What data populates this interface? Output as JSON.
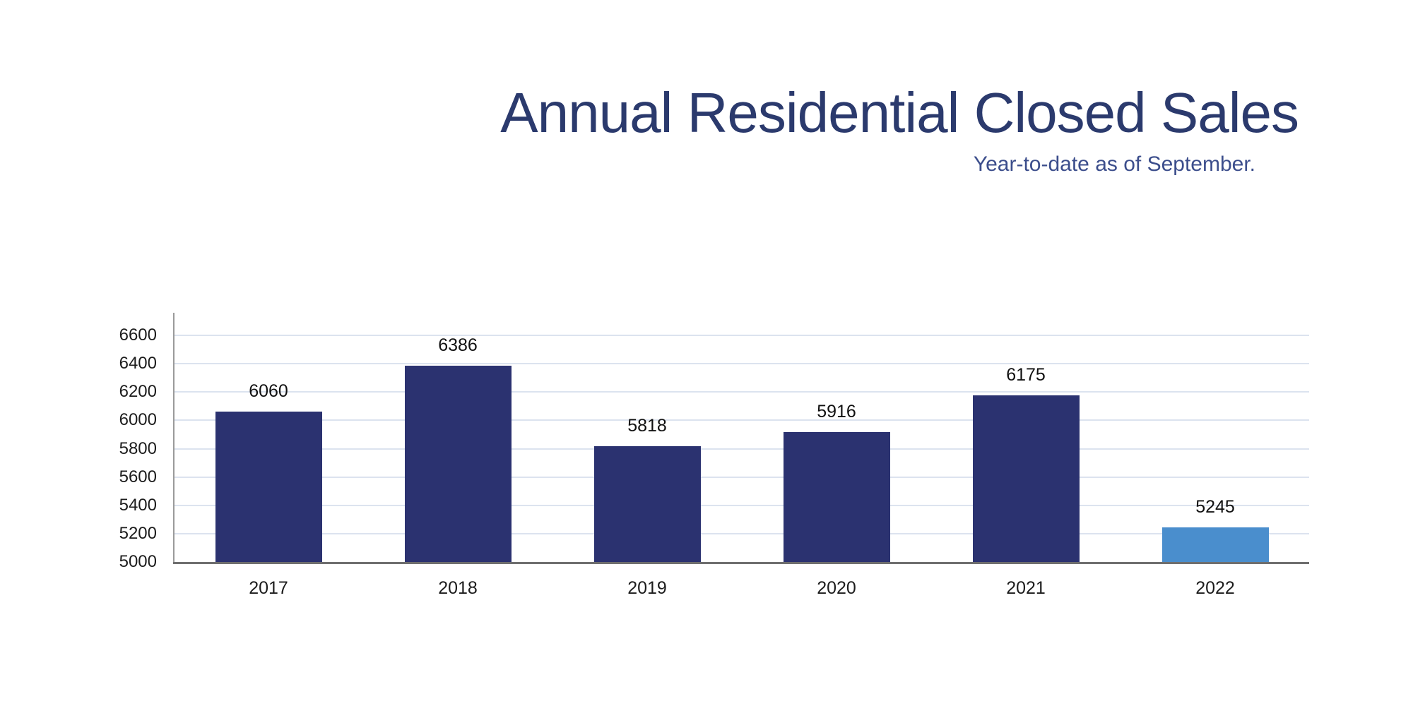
{
  "chart_data": {
    "type": "bar",
    "title": "Annual Residential Closed Sales",
    "subtitle": "Year-to-date as of September.",
    "categories": [
      "2017",
      "2018",
      "2019",
      "2020",
      "2021",
      "2022"
    ],
    "values": [
      6060,
      6386,
      5818,
      5916,
      6175,
      5245
    ],
    "value_labels": [
      "6060",
      "6386",
      "5818",
      "5916",
      "6175",
      "5245"
    ],
    "bar_colors": [
      "#2b3270",
      "#2b3270",
      "#2b3270",
      "#2b3270",
      "#2b3270",
      "#4a8ecd"
    ],
    "highlight_index": 5,
    "ylim": [
      5000,
      6600
    ],
    "ytick_step": 200,
    "yticks": [
      "5000",
      "5200",
      "5400",
      "5600",
      "5800",
      "6000",
      "6200",
      "6400",
      "6600"
    ],
    "grid": true,
    "legend": "none",
    "colors": {
      "background": "#ffffff",
      "title": "#2b3a6d",
      "subtitle": "#3c4e8c",
      "gridline": "#dce3ef",
      "y_axis_line": "#9b9b9b",
      "x_axis_line": "#6f6f6f",
      "tick_label": "#1c1c1c",
      "value_label": "#111111"
    }
  }
}
